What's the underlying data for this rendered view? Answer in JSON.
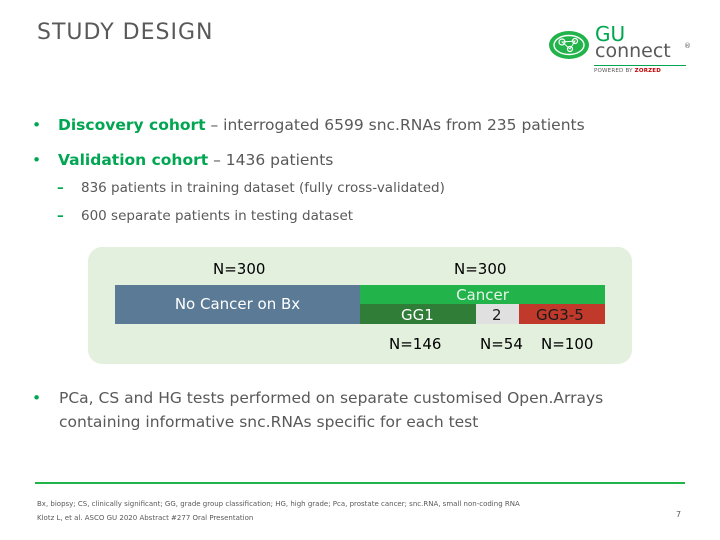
{
  "slide": {
    "title": "STUDY DESIGN",
    "page_number": "7"
  },
  "logo": {
    "gu": "GU",
    "connect": "connect",
    "tm": "®",
    "powered_prefix": "POWERED BY ",
    "powered_brand": "ZORZED",
    "brand_color": "#00a651"
  },
  "bullets": [
    {
      "strong": "Discovery cohort",
      "text": " – interrogated 6599 snc.RNAs from 235 patients"
    },
    {
      "strong": "Validation cohort",
      "text": " – 1436 patients"
    }
  ],
  "sub_bullets": [
    "836 patients in training dataset (fully cross-validated)",
    "600 separate patients in testing dataset"
  ],
  "diagram": {
    "left_n": "N=300",
    "left_label": "No Cancer on Bx",
    "right_n": "N=300",
    "right_label": "Cancer",
    "segments": [
      "GG1",
      "2",
      "GG3-5"
    ],
    "counts": [
      "N=146",
      "N=54",
      "N=100"
    ],
    "colors": {
      "no_cancer": "#5b7a96",
      "cancer": "#22b34b",
      "gg1": "#2f7d37",
      "gg2": "#e0e0e0",
      "gg35": "#c0392b",
      "panel": "#e3f0de"
    }
  },
  "bullet3": {
    "line1": "PCa, CS and HG tests performed on separate customised Open.Arrays",
    "line2": "containing informative snc.RNAs specific for each test"
  },
  "footnote": {
    "abbrev": "Bx, biopsy; CS, clinically significant; GG, grade group classification; HG, high grade; Pca, prostate cancer; snc.RNA, small non-coding RNA",
    "citation": "Klotz L, et al. ASCO GU 2020 Abstract #277 Oral Presentation"
  }
}
